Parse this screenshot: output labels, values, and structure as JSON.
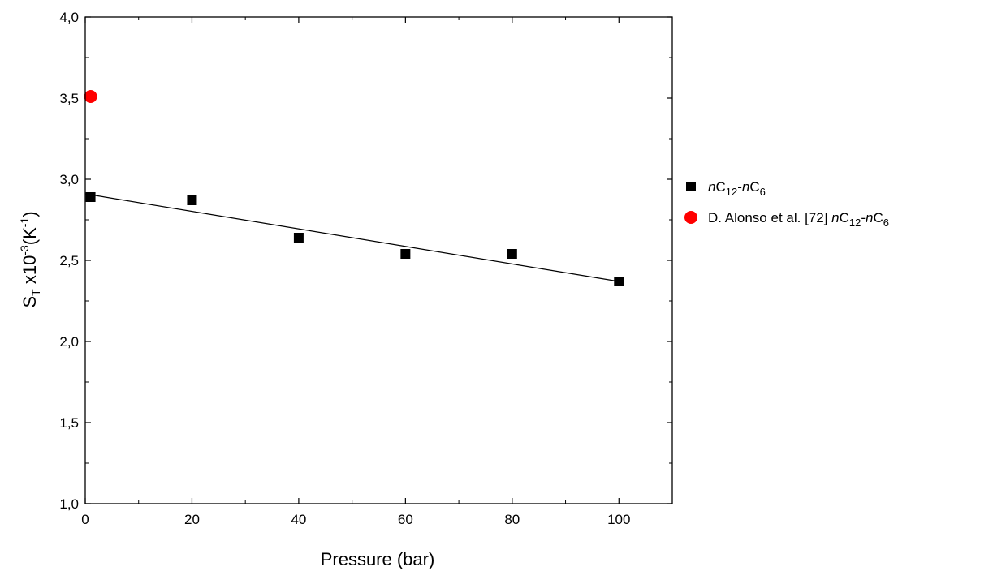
{
  "chart_data": {
    "type": "scatter",
    "xlabel": "Pressure (bar)",
    "ylabel": {
      "base": "S",
      "sub": "T",
      "mid": " x10",
      "sup": "-3",
      "unit_open": "(K",
      "unit_sup": "-1",
      "unit_close": ")"
    },
    "xlim": [
      0,
      110
    ],
    "ylim": [
      1.0,
      4.0
    ],
    "x_ticks": [
      0,
      20,
      40,
      60,
      80,
      100
    ],
    "x_tick_labels": [
      "0",
      "20",
      "40",
      "60",
      "80",
      "100"
    ],
    "x_minor_step": 10,
    "y_ticks": [
      1.0,
      1.5,
      2.0,
      2.5,
      3.0,
      3.5,
      4.0
    ],
    "y_tick_labels": [
      "1,0",
      "1,5",
      "2,0",
      "2,5",
      "3,0",
      "3,5",
      "4,0"
    ],
    "y_minor_step": 0.25,
    "grid": false,
    "legend_position": "right",
    "series": [
      {
        "name_parts": [
          {
            "t": "n",
            "style": "italic"
          },
          {
            "t": "C",
            "style": "normal"
          },
          {
            "t": "12",
            "style": "sub"
          },
          {
            "t": "-",
            "style": "normal"
          },
          {
            "t": "n",
            "style": "italic"
          },
          {
            "t": "C",
            "style": "normal"
          },
          {
            "t": "6",
            "style": "sub"
          }
        ],
        "marker": "square",
        "color": "#000000",
        "x": [
          1,
          20,
          40,
          60,
          80,
          100
        ],
        "y": [
          2.89,
          2.87,
          2.64,
          2.54,
          2.54,
          2.37
        ]
      },
      {
        "name_parts": [
          {
            "t": "D. Alonso et al. [72] ",
            "style": "normal"
          },
          {
            "t": "n",
            "style": "italic"
          },
          {
            "t": "C",
            "style": "normal"
          },
          {
            "t": "12",
            "style": "sub"
          },
          {
            "t": "-",
            "style": "normal"
          },
          {
            "t": "n",
            "style": "italic"
          },
          {
            "t": "C",
            "style": "normal"
          },
          {
            "t": "6",
            "style": "sub"
          }
        ],
        "marker": "circle",
        "color": "#ff0000",
        "x": [
          1
        ],
        "y": [
          3.51
        ]
      }
    ],
    "fit_line": {
      "series": 0,
      "color": "#000000",
      "x": [
        0,
        100
      ],
      "y": [
        2.91,
        2.37
      ]
    }
  }
}
